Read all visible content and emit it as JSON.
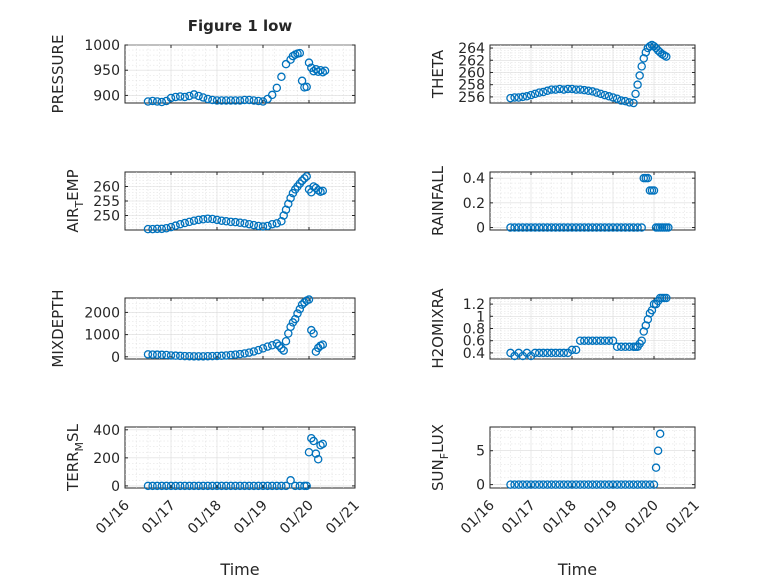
{
  "figure": {
    "title": "Figure 1 low",
    "marker_color": "#0072BD"
  },
  "chart_data": [
    {
      "type": "scatter",
      "id": "pressure",
      "ylabel": "PRESSURE",
      "xlim": [
        "01/16",
        "01/21"
      ],
      "ylim": [
        885,
        1000
      ],
      "yticks": [
        900,
        950,
        1000
      ],
      "xtick_labels": [],
      "grid": true,
      "xlabel": "",
      "x": [
        0.5,
        0.6,
        0.7,
        0.8,
        0.9,
        1.0,
        1.1,
        1.2,
        1.3,
        1.4,
        1.5,
        1.6,
        1.7,
        1.8,
        1.9,
        2.0,
        2.1,
        2.2,
        2.3,
        2.4,
        2.5,
        2.6,
        2.7,
        2.8,
        2.9,
        3.0,
        3.1,
        3.2,
        3.3,
        3.4,
        3.5,
        3.6,
        3.65,
        3.7,
        3.75,
        3.8,
        3.85,
        3.9,
        3.95,
        4.0,
        4.05,
        4.1,
        4.15,
        4.2,
        4.25,
        4.3,
        4.35
      ],
      "y": [
        888,
        889,
        888,
        887,
        889,
        895,
        897,
        898,
        897,
        899,
        902,
        899,
        896,
        893,
        891,
        890,
        890,
        890,
        890,
        890,
        890,
        891,
        891,
        890,
        889,
        888,
        893,
        901,
        915,
        937,
        962,
        971,
        978,
        981,
        983,
        984,
        929,
        916,
        917,
        965,
        955,
        948,
        952,
        947,
        950,
        946,
        949
      ]
    },
    {
      "type": "scatter",
      "id": "theta",
      "ylabel": "THETA",
      "xlim": [
        "01/16",
        "01/21"
      ],
      "ylim": [
        255,
        264.5
      ],
      "yticks": [
        256,
        258,
        260,
        262,
        264
      ],
      "xtick_labels": [],
      "grid": true,
      "xlabel": "",
      "x": [
        0.5,
        0.6,
        0.7,
        0.8,
        0.9,
        1.0,
        1.1,
        1.2,
        1.3,
        1.4,
        1.5,
        1.6,
        1.7,
        1.8,
        1.9,
        2.0,
        2.1,
        2.2,
        2.3,
        2.4,
        2.5,
        2.6,
        2.7,
        2.8,
        2.9,
        3.0,
        3.1,
        3.2,
        3.3,
        3.4,
        3.5,
        3.55,
        3.6,
        3.65,
        3.7,
        3.75,
        3.8,
        3.85,
        3.9,
        3.95,
        4.0,
        4.05,
        4.1,
        4.15,
        4.2,
        4.25,
        4.3
      ],
      "y": [
        255.8,
        255.9,
        255.9,
        256.0,
        256.1,
        256.3,
        256.5,
        256.7,
        256.8,
        257.0,
        257.2,
        257.2,
        257.3,
        257.2,
        257.3,
        257.3,
        257.2,
        257.2,
        257.1,
        257.0,
        256.9,
        256.7,
        256.5,
        256.3,
        256.1,
        255.9,
        255.7,
        255.4,
        255.3,
        255.1,
        255.0,
        256.5,
        258.0,
        259.5,
        261.0,
        262.3,
        263.3,
        264.0,
        264.3,
        264.5,
        264.3,
        264.0,
        263.6,
        263.3,
        263.0,
        262.8,
        262.6
      ]
    },
    {
      "type": "scatter",
      "id": "air_temp",
      "ylabel": "AIR_TEMP",
      "xlim": [
        "01/16",
        "01/21"
      ],
      "ylim": [
        245,
        265
      ],
      "yticks": [
        250,
        255,
        260
      ],
      "xtick_labels": [],
      "grid": true,
      "xlabel": "",
      "x": [
        0.5,
        0.6,
        0.7,
        0.8,
        0.9,
        1.0,
        1.1,
        1.2,
        1.3,
        1.4,
        1.5,
        1.6,
        1.7,
        1.8,
        1.9,
        2.0,
        2.1,
        2.2,
        2.3,
        2.4,
        2.5,
        2.6,
        2.7,
        2.8,
        2.9,
        3.0,
        3.1,
        3.2,
        3.3,
        3.4,
        3.45,
        3.5,
        3.55,
        3.6,
        3.65,
        3.7,
        3.75,
        3.8,
        3.85,
        3.9,
        3.95,
        4.0,
        4.05,
        4.1,
        4.15,
        4.2,
        4.25,
        4.3
      ],
      "y": [
        245.3,
        245.3,
        245.4,
        245.4,
        245.6,
        246.0,
        246.5,
        247.0,
        247.4,
        247.8,
        248.2,
        248.5,
        248.7,
        248.9,
        248.8,
        248.5,
        248.2,
        248.0,
        247.8,
        247.7,
        247.5,
        247.3,
        247.0,
        246.7,
        246.4,
        246.2,
        246.4,
        247.0,
        247.3,
        248.0,
        250.0,
        252.0,
        254.0,
        256.0,
        257.7,
        259.0,
        260.0,
        261.0,
        262.0,
        262.8,
        263.5,
        259.0,
        258.0,
        260.0,
        259.5,
        258.7,
        258.2,
        258.5
      ]
    },
    {
      "type": "scatter",
      "id": "rainfall",
      "ylabel": "RAINFALL",
      "xlim": [
        "01/16",
        "01/21"
      ],
      "ylim": [
        -0.02,
        0.45
      ],
      "yticks": [
        0,
        0.2,
        0.4
      ],
      "xtick_labels": [],
      "grid": true,
      "xlabel": "",
      "x": [
        0.5,
        0.6,
        0.7,
        0.8,
        0.9,
        1.0,
        1.1,
        1.2,
        1.3,
        1.4,
        1.5,
        1.6,
        1.7,
        1.8,
        1.9,
        2.0,
        2.1,
        2.2,
        2.3,
        2.4,
        2.5,
        2.6,
        2.7,
        2.8,
        2.9,
        3.0,
        3.1,
        3.2,
        3.3,
        3.4,
        3.5,
        3.6,
        3.7,
        3.75,
        3.8,
        3.85,
        3.9,
        3.95,
        4.0,
        4.05,
        4.1,
        4.15,
        4.2,
        4.25,
        4.3,
        4.35
      ],
      "y": [
        0,
        0,
        0,
        0,
        0,
        0,
        0,
        0,
        0,
        0,
        0,
        0,
        0,
        0,
        0,
        0,
        0,
        0,
        0,
        0,
        0,
        0,
        0,
        0,
        0,
        0,
        0,
        0,
        0,
        0,
        0,
        0,
        0,
        0.4,
        0.4,
        0.4,
        0.3,
        0.3,
        0.3,
        0,
        0,
        0,
        0,
        0,
        0,
        0
      ]
    },
    {
      "type": "scatter",
      "id": "mixdepth",
      "ylabel": "MIXDEPTH",
      "xlim": [
        "01/16",
        "01/21"
      ],
      "ylim": [
        -100,
        2650
      ],
      "yticks": [
        0,
        1000,
        2000
      ],
      "xtick_labels": [],
      "grid": true,
      "xlabel": "",
      "x": [
        0.5,
        0.6,
        0.7,
        0.8,
        0.9,
        1.0,
        1.1,
        1.2,
        1.3,
        1.4,
        1.5,
        1.6,
        1.7,
        1.8,
        1.9,
        2.0,
        2.1,
        2.2,
        2.3,
        2.4,
        2.5,
        2.6,
        2.7,
        2.8,
        2.9,
        3.0,
        3.1,
        3.2,
        3.3,
        3.35,
        3.4,
        3.45,
        3.5,
        3.55,
        3.6,
        3.65,
        3.7,
        3.75,
        3.8,
        3.85,
        3.9,
        3.95,
        4.0,
        4.05,
        4.1,
        4.15,
        4.2,
        4.25,
        4.3
      ],
      "y": [
        110,
        100,
        95,
        90,
        80,
        60,
        50,
        40,
        30,
        25,
        20,
        20,
        20,
        25,
        30,
        35,
        45,
        60,
        80,
        100,
        120,
        150,
        190,
        240,
        300,
        380,
        460,
        520,
        600,
        500,
        380,
        280,
        700,
        1050,
        1350,
        1550,
        1700,
        1950,
        2150,
        2350,
        2450,
        2530,
        2580,
        1200,
        1050,
        230,
        400,
        500,
        550
      ]
    },
    {
      "type": "scatter",
      "id": "h2omixra",
      "ylabel": "H2OMIXRA",
      "xlim": [
        "01/16",
        "01/21"
      ],
      "ylim": [
        0.3,
        1.3
      ],
      "yticks": [
        0.4,
        0.6,
        0.8,
        1,
        1.2
      ],
      "xtick_labels": [],
      "grid": true,
      "xlabel": "",
      "x": [
        0.5,
        0.6,
        0.7,
        0.8,
        0.9,
        1.0,
        1.1,
        1.2,
        1.3,
        1.4,
        1.5,
        1.6,
        1.7,
        1.8,
        1.9,
        2.0,
        2.1,
        2.2,
        2.3,
        2.4,
        2.5,
        2.6,
        2.7,
        2.8,
        2.9,
        3.0,
        3.1,
        3.2,
        3.3,
        3.4,
        3.5,
        3.55,
        3.6,
        3.65,
        3.7,
        3.75,
        3.8,
        3.85,
        3.9,
        3.95,
        4.0,
        4.05,
        4.1,
        4.15,
        4.2,
        4.25,
        4.3
      ],
      "y": [
        0.4,
        0.35,
        0.4,
        0.35,
        0.4,
        0.35,
        0.4,
        0.4,
        0.4,
        0.4,
        0.4,
        0.4,
        0.4,
        0.4,
        0.4,
        0.45,
        0.45,
        0.6,
        0.6,
        0.6,
        0.6,
        0.6,
        0.6,
        0.6,
        0.6,
        0.6,
        0.5,
        0.5,
        0.5,
        0.5,
        0.5,
        0.5,
        0.5,
        0.55,
        0.6,
        0.75,
        0.85,
        0.95,
        1.05,
        1.1,
        1.2,
        1.2,
        1.25,
        1.3,
        1.3,
        1.3,
        1.3
      ]
    },
    {
      "type": "scatter",
      "id": "terr_msl",
      "ylabel": "TERR_MSL",
      "xlim": [
        "01/16",
        "01/21"
      ],
      "ylim": [
        -15,
        420
      ],
      "yticks": [
        0,
        200,
        400
      ],
      "xtick_labels": [
        "01/16",
        "01/17",
        "01/18",
        "01/19",
        "01/20",
        "01/21"
      ],
      "grid": true,
      "xlabel": "Time",
      "x": [
        0.5,
        0.6,
        0.7,
        0.8,
        0.9,
        1.0,
        1.1,
        1.2,
        1.3,
        1.4,
        1.5,
        1.6,
        1.7,
        1.8,
        1.9,
        2.0,
        2.1,
        2.2,
        2.3,
        2.4,
        2.5,
        2.6,
        2.7,
        2.8,
        2.9,
        3.0,
        3.1,
        3.2,
        3.3,
        3.4,
        3.5,
        3.6,
        3.7,
        3.8,
        3.9,
        3.95,
        4.0,
        4.05,
        4.1,
        4.15,
        4.2,
        4.25,
        4.3
      ],
      "y": [
        0,
        0,
        0,
        0,
        0,
        0,
        0,
        0,
        0,
        0,
        0,
        0,
        0,
        0,
        0,
        0,
        0,
        0,
        0,
        0,
        0,
        0,
        0,
        0,
        0,
        0,
        0,
        0,
        0,
        0,
        0,
        40,
        0,
        0,
        0,
        0,
        240,
        340,
        320,
        230,
        190,
        290,
        300
      ]
    },
    {
      "type": "scatter",
      "id": "sun_flux",
      "ylabel": "SUN_FLUX",
      "xlim": [
        "01/16",
        "01/21"
      ],
      "ylim": [
        -0.5,
        8.5
      ],
      "yticks": [
        0,
        5
      ],
      "xtick_labels": [
        "01/16",
        "01/17",
        "01/18",
        "01/19",
        "01/20",
        "01/21"
      ],
      "grid": true,
      "xlabel": "Time",
      "x": [
        0.5,
        0.6,
        0.7,
        0.8,
        0.9,
        1.0,
        1.1,
        1.2,
        1.3,
        1.4,
        1.5,
        1.6,
        1.7,
        1.8,
        1.9,
        2.0,
        2.1,
        2.2,
        2.3,
        2.4,
        2.5,
        2.6,
        2.7,
        2.8,
        2.9,
        3.0,
        3.1,
        3.2,
        3.3,
        3.4,
        3.5,
        3.6,
        3.7,
        3.8,
        3.9,
        4.0,
        4.05,
        4.1,
        4.15
      ],
      "y": [
        0,
        0,
        0,
        0,
        0,
        0,
        0,
        0,
        0,
        0,
        0,
        0,
        0,
        0,
        0,
        0,
        0,
        0,
        0,
        0,
        0,
        0,
        0,
        0,
        0,
        0,
        0,
        0,
        0,
        0,
        0,
        0,
        0,
        0,
        0,
        0,
        2.5,
        5.0,
        7.5
      ]
    }
  ],
  "axis_label_parts": {
    "air_temp": {
      "pre": "AIR",
      "sub": "T",
      "post": "EMP"
    },
    "terr_msl": {
      "pre": "TERR",
      "sub": "M",
      "post": "SL"
    },
    "sun_flux": {
      "pre": "SUN",
      "sub": "F",
      "post": "LUX"
    }
  }
}
